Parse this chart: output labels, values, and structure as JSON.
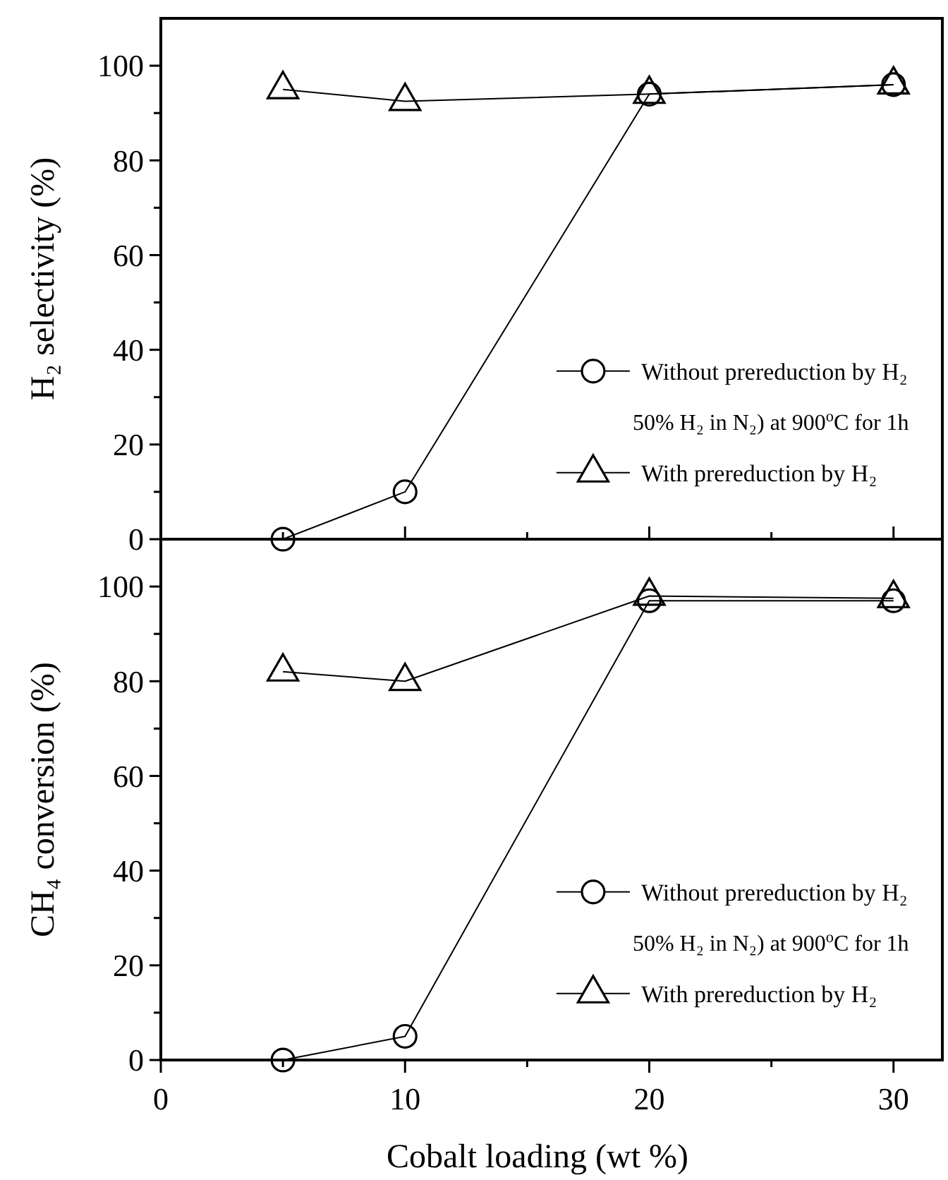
{
  "chart_data": [
    {
      "type": "line",
      "ylabel": "H₂ selectivity (%)",
      "x": [
        5,
        10,
        20,
        30
      ],
      "xlim": [
        0,
        32
      ],
      "xticks": [
        {
          "value": 0,
          "label": null
        },
        {
          "value": 5,
          "label": null
        },
        {
          "value": 10,
          "label": null
        },
        {
          "value": 15,
          "label": null
        },
        {
          "value": 20,
          "label": null
        },
        {
          "value": 25,
          "label": null
        },
        {
          "value": 30,
          "label": null
        }
      ],
      "ylim": [
        0,
        110
      ],
      "yticks": [
        0,
        {
          "value": 10,
          "label": null
        },
        20,
        {
          "value": 30,
          "label": null
        },
        40,
        {
          "value": 50,
          "label": null
        },
        60,
        {
          "value": 70,
          "label": null
        },
        80,
        {
          "value": 90,
          "label": null
        },
        100
      ],
      "tick_labels": "y",
      "grid": false,
      "legend": "bottom right",
      "line_style": "solid",
      "series": [
        {
          "name": "Without prereduction by H₂",
          "color": "#000000",
          "marker": "circle",
          "values": [
            0,
            10,
            94,
            96
          ]
        },
        {
          "name": "With prereduction by H₂",
          "color": "#000000",
          "marker": "triangle",
          "values": [
            95,
            92.5,
            94,
            96
          ]
        }
      ],
      "annotations": [
        "50% H₂ in N₂) at 900$^{o}$C for 1h"
      ]
    },
    {
      "type": "line",
      "xlabel": "Cobalt loading (wt %)",
      "ylabel": "CH₄ conversion (%)",
      "x": [
        5,
        10,
        20,
        30
      ],
      "xlim": [
        0,
        32
      ],
      "xticks": [
        0,
        {
          "value": 5,
          "label": null
        },
        10,
        {
          "value": 15,
          "label": null
        },
        20,
        {
          "value": 25,
          "label": null
        },
        30
      ],
      "ylim": [
        0,
        110
      ],
      "yticks": [
        0,
        {
          "value": 10,
          "label": null
        },
        20,
        {
          "value": 30,
          "label": null
        },
        40,
        {
          "value": 50,
          "label": null
        },
        60,
        {
          "value": 70,
          "label": null
        },
        80,
        {
          "value": 90,
          "label": null
        },
        100
      ],
      "grid": false,
      "legend": "bottom right",
      "line_style": "solid",
      "series": [
        {
          "name": "Without prereduction by H₂",
          "color": "#000000",
          "marker": "circle",
          "values": [
            0,
            5,
            97,
            97
          ]
        },
        {
          "name": "With prereduction by H₂",
          "color": "#000000",
          "marker": "triangle",
          "values": [
            82,
            80,
            98,
            97.5
          ]
        }
      ],
      "annotations": [
        "50% H₂ in N₂) at 900$^{o}$C for 1h"
      ]
    }
  ]
}
